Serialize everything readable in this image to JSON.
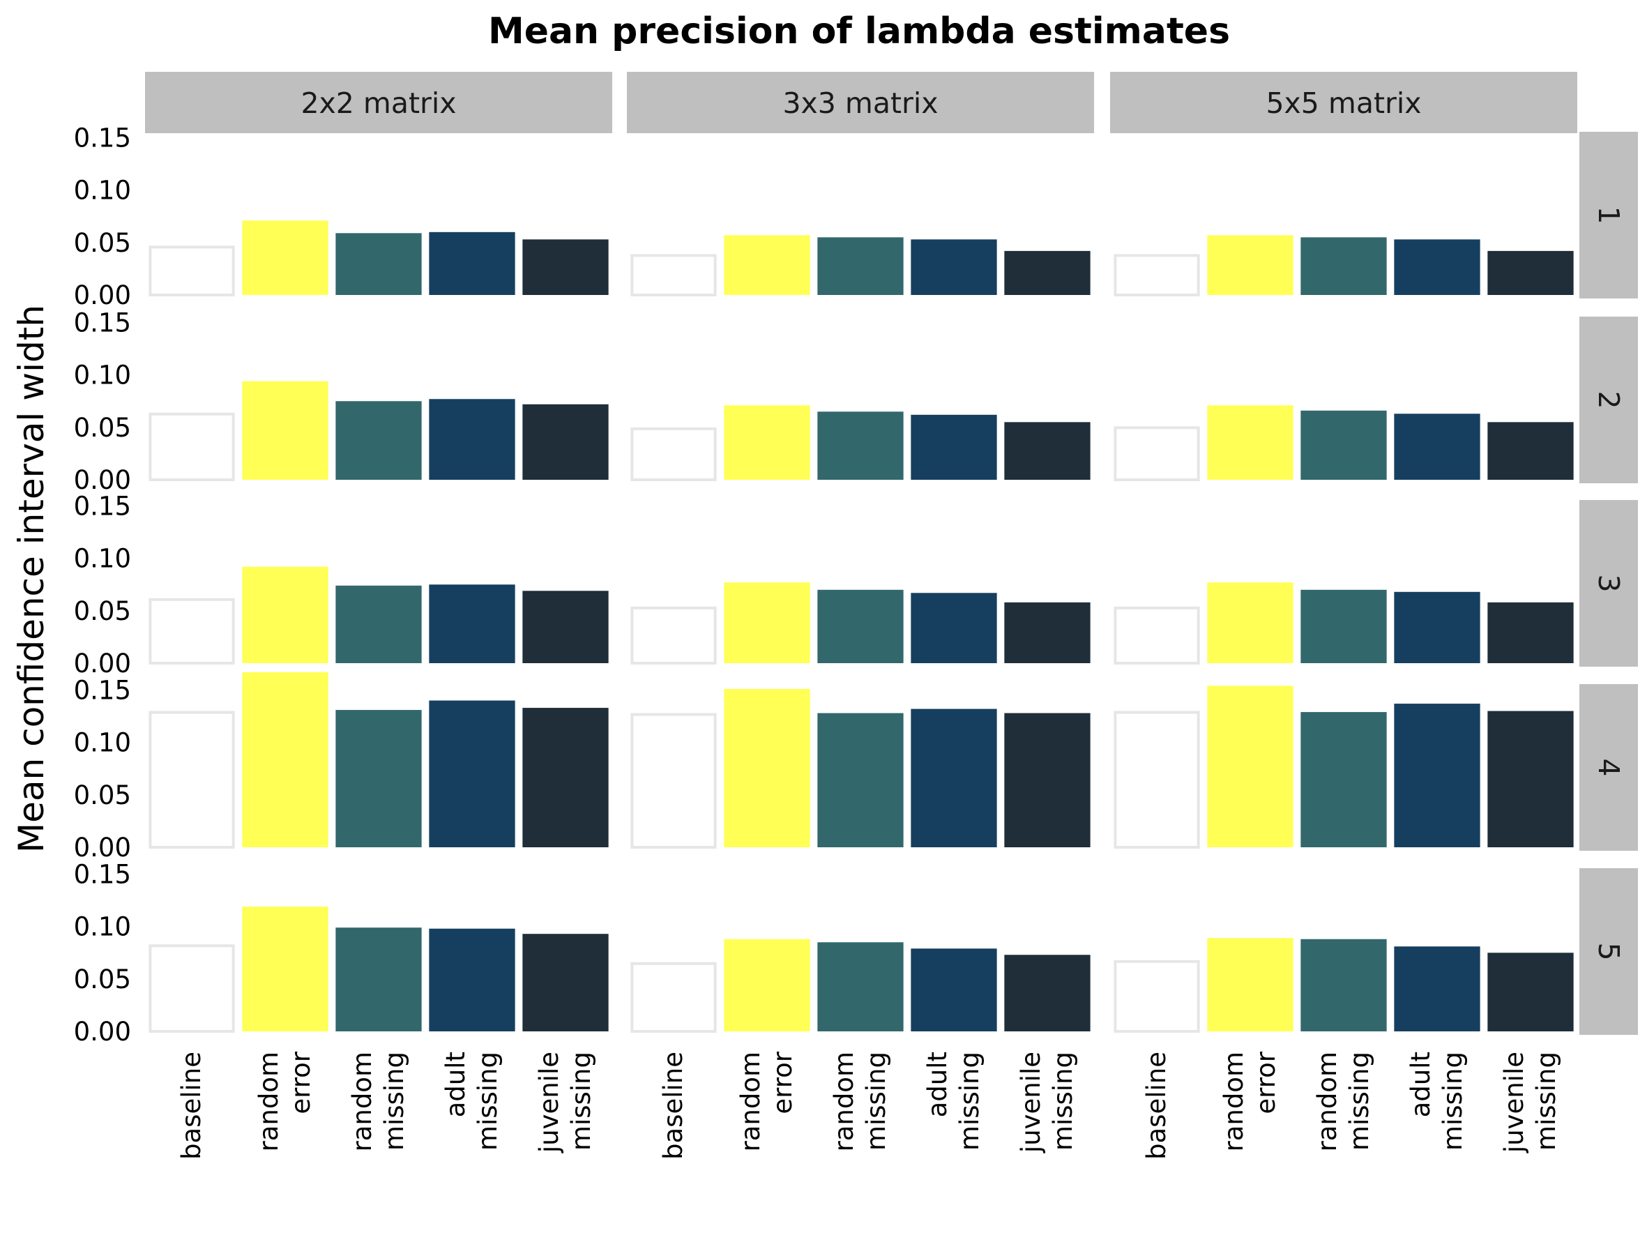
{
  "chart_data": {
    "type": "bar",
    "title": "Mean precision of lambda estimates",
    "ylabel": "Mean confidence interval width",
    "xlabel": "",
    "ylim": [
      0,
      0.155
    ],
    "yticks": [
      "0.00",
      "0.05",
      "0.10",
      "0.15"
    ],
    "categories": [
      "baseline",
      "random error",
      "random missing",
      "adult missing",
      "juvenile missing"
    ],
    "category_lines": [
      [
        "baseline"
      ],
      [
        "random",
        "error"
      ],
      [
        "random",
        "missing"
      ],
      [
        "adult",
        "missing"
      ],
      [
        "juvenile",
        "missing"
      ]
    ],
    "colors": [
      "#ffffff",
      "#ffff55",
      "#32686b",
      "#163f5f",
      "#1f2e38"
    ],
    "baseline_outline": "#e6e6e6",
    "strip_fill": "#bfbfbf",
    "columns": [
      "2x2 matrix",
      "3x3 matrix",
      "5x5 matrix"
    ],
    "rows": [
      "1",
      "2",
      "3",
      "4",
      "5"
    ],
    "values": [
      [
        [
          0.047,
          0.071,
          0.059,
          0.06,
          0.053
        ],
        [
          0.039,
          0.057,
          0.055,
          0.053,
          0.042
        ],
        [
          0.039,
          0.057,
          0.055,
          0.053,
          0.042
        ]
      ],
      [
        [
          0.064,
          0.094,
          0.075,
          0.077,
          0.072
        ],
        [
          0.05,
          0.071,
          0.065,
          0.062,
          0.055
        ],
        [
          0.051,
          0.071,
          0.066,
          0.063,
          0.055
        ]
      ],
      [
        [
          0.062,
          0.092,
          0.074,
          0.075,
          0.069
        ],
        [
          0.054,
          0.077,
          0.07,
          0.067,
          0.058
        ],
        [
          0.054,
          0.077,
          0.07,
          0.068,
          0.058
        ]
      ],
      [
        [
          0.13,
          0.167,
          0.131,
          0.14,
          0.133
        ],
        [
          0.128,
          0.151,
          0.128,
          0.132,
          0.128
        ],
        [
          0.13,
          0.154,
          0.129,
          0.137,
          0.13
        ]
      ],
      [
        [
          0.083,
          0.119,
          0.099,
          0.098,
          0.093
        ],
        [
          0.066,
          0.088,
          0.085,
          0.079,
          0.073
        ],
        [
          0.068,
          0.089,
          0.088,
          0.081,
          0.075
        ]
      ]
    ]
  }
}
